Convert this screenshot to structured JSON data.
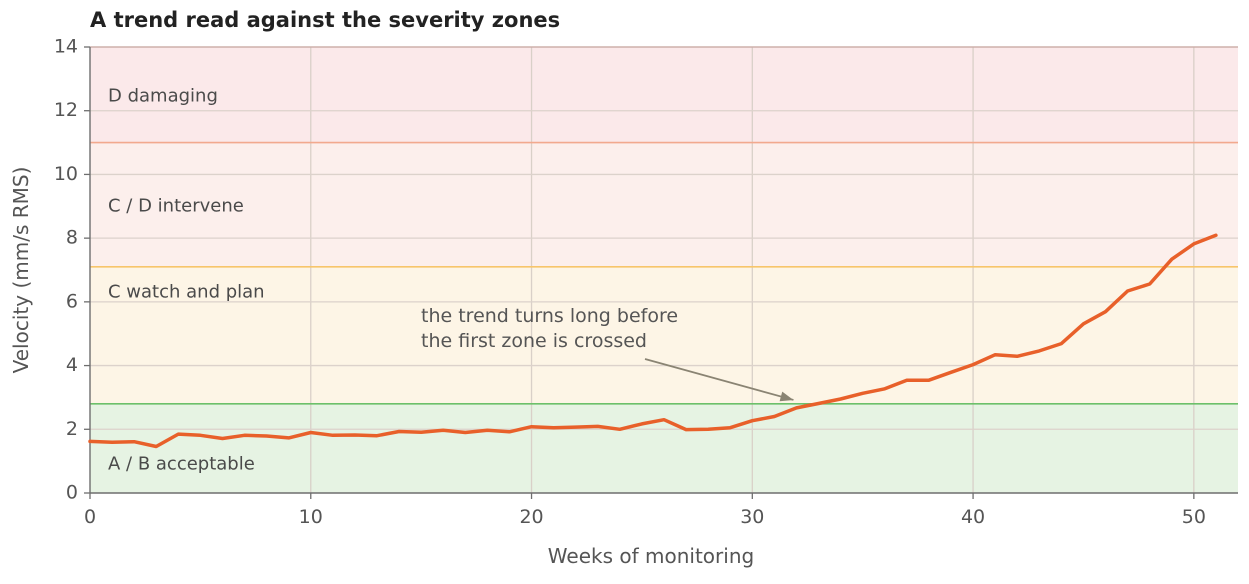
{
  "chart_data": {
    "type": "line",
    "title": "A trend read against the severity zones",
    "xlabel": "Weeks of monitoring",
    "ylabel": "Velocity (mm/s RMS)",
    "xlim": [
      0,
      52
    ],
    "ylim": [
      0,
      14
    ],
    "xticks": [
      0,
      10,
      20,
      30,
      40,
      50
    ],
    "yticks": [
      0,
      2,
      4,
      6,
      8,
      10,
      12,
      14
    ],
    "grid": true,
    "zones": [
      {
        "label": "A / B  acceptable",
        "from": 0,
        "to": 2.8,
        "fill": "#e6f3e3",
        "line": "#6cc06a"
      },
      {
        "label": "C  watch and plan",
        "from": 2.8,
        "to": 7.1,
        "fill": "#fdf5e6",
        "line": "#f7c56b"
      },
      {
        "label": "C / D  intervene",
        "from": 7.1,
        "to": 11.0,
        "fill": "#fcefec",
        "line": "#f2a98e"
      },
      {
        "label": "D  damaging",
        "from": 11.0,
        "to": 14,
        "fill": "#fbe9ea",
        "line": "#cdbdbd"
      }
    ],
    "series": [
      {
        "color": "#e8602a",
        "x": [
          0,
          1,
          2,
          3,
          4,
          5,
          6,
          7,
          8,
          9,
          10,
          11,
          12,
          13,
          14,
          15,
          16,
          17,
          18,
          19,
          20,
          21,
          22,
          23,
          24,
          25,
          26,
          27,
          28,
          29,
          30,
          31,
          32,
          33,
          34,
          35,
          36,
          37,
          38,
          39,
          40,
          41,
          42,
          43,
          44,
          45,
          46,
          47,
          48,
          49,
          50,
          51
        ],
        "values": [
          1.62,
          1.59,
          1.61,
          1.46,
          1.85,
          1.81,
          1.71,
          1.81,
          1.79,
          1.73,
          1.9,
          1.81,
          1.82,
          1.8,
          1.93,
          1.91,
          1.97,
          1.9,
          1.97,
          1.92,
          2.08,
          2.05,
          2.07,
          2.09,
          2.0,
          2.17,
          2.3,
          1.99,
          2.0,
          2.05,
          2.27,
          2.4,
          2.67,
          2.81,
          2.95,
          3.13,
          3.27,
          3.54,
          3.54,
          3.79,
          4.03,
          4.34,
          4.29,
          4.46,
          4.69,
          5.31,
          5.69,
          6.34,
          6.56,
          7.34,
          7.82,
          8.09
        ]
      }
    ],
    "annotation": {
      "lines": [
        "the trend turns long before",
        "the first zone is crossed"
      ],
      "target": [
        32,
        2.67
      ]
    }
  }
}
